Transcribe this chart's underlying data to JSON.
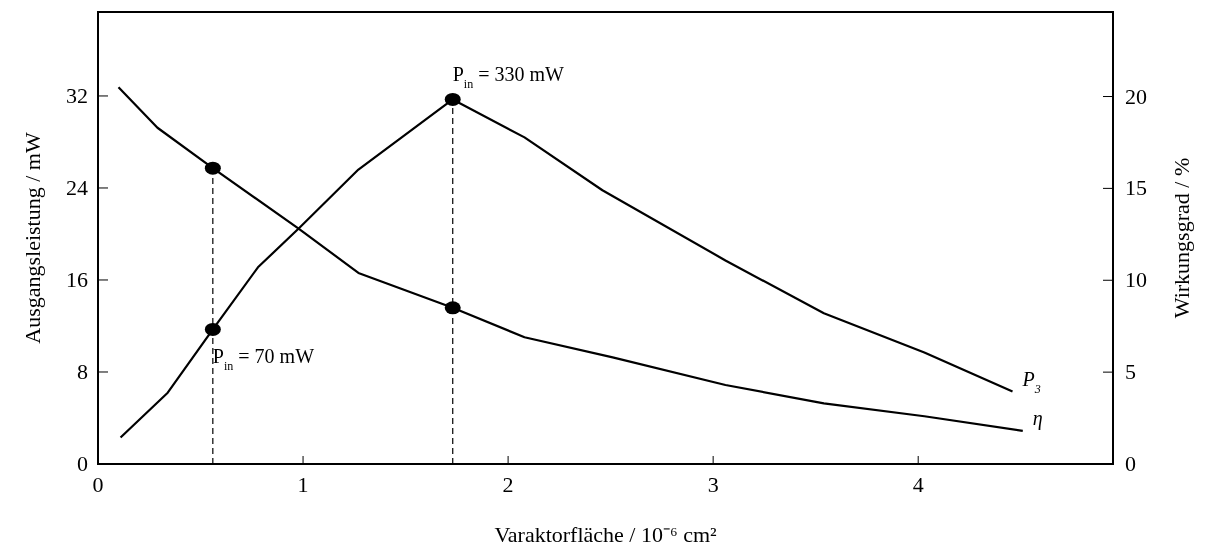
{
  "chart_data": {
    "type": "line",
    "xlabel": "Varaktorfläche  /  10⁻⁶ cm²",
    "ylabel": "Ausgangsleistung  /  mW",
    "y2label": "Wirkungsgrad  /  %",
    "xlim": [
      0,
      4.95
    ],
    "xticks": [
      0,
      1,
      2,
      3,
      4
    ],
    "ylim": [
      0,
      39.3
    ],
    "yticks": [
      0,
      8,
      16,
      24,
      32
    ],
    "y2lim": [
      0,
      24.6
    ],
    "y2ticks": [
      0,
      5,
      10,
      15,
      20
    ],
    "grid": false,
    "marker": "none",
    "line_style": "solid",
    "series": [
      {
        "name": "P$_{3}$",
        "color": "#000000",
        "x": [
          0.11,
          0.34,
          0.56,
          0.78,
          0.98,
          1.27,
          1.73,
          2.08,
          2.46,
          3.06,
          3.54,
          4.03,
          4.46
        ],
        "values": [
          2.3,
          6.2,
          11.7,
          17.1,
          20.5,
          25.6,
          31.7,
          28.4,
          23.8,
          17.7,
          13.1,
          9.7,
          6.3
        ]
      },
      {
        "name": "η",
        "color": "#000000",
        "axis": "y2",
        "x": [
          0.1,
          0.29,
          0.56,
          0.98,
          1.27,
          1.73,
          2.08,
          2.51,
          3.06,
          3.54,
          4.03,
          4.51
        ],
        "values": [
          20.5,
          18.3,
          16.1,
          12.8,
          10.4,
          8.5,
          6.9,
          5.8,
          4.3,
          3.3,
          2.6,
          1.8
        ]
      },
      {
        "type": "scatter",
        "color": "#000000",
        "marker": "circle",
        "x": [
          0.56,
          1.73
        ],
        "values": [
          11.7,
          31.7
        ]
      },
      {
        "type": "scatter",
        "color": "#000000",
        "marker": "circle",
        "axis": "y2",
        "x": [
          0.56,
          1.73
        ],
        "values": [
          16.1,
          8.5
        ]
      }
    ],
    "ref_lines": [
      {
        "axis": "x",
        "value": 0.56,
        "line_style": "dashed"
      },
      {
        "axis": "x",
        "value": 1.73,
        "line_style": "dashed"
      }
    ],
    "annotations": [
      {
        "text": "P$_{in}$ = 330 mW",
        "x": 1.73,
        "y": 31.7
      },
      {
        "text": "P$_{in}$ = 70 mW",
        "x": 0.56,
        "y": 11.7
      }
    ]
  }
}
